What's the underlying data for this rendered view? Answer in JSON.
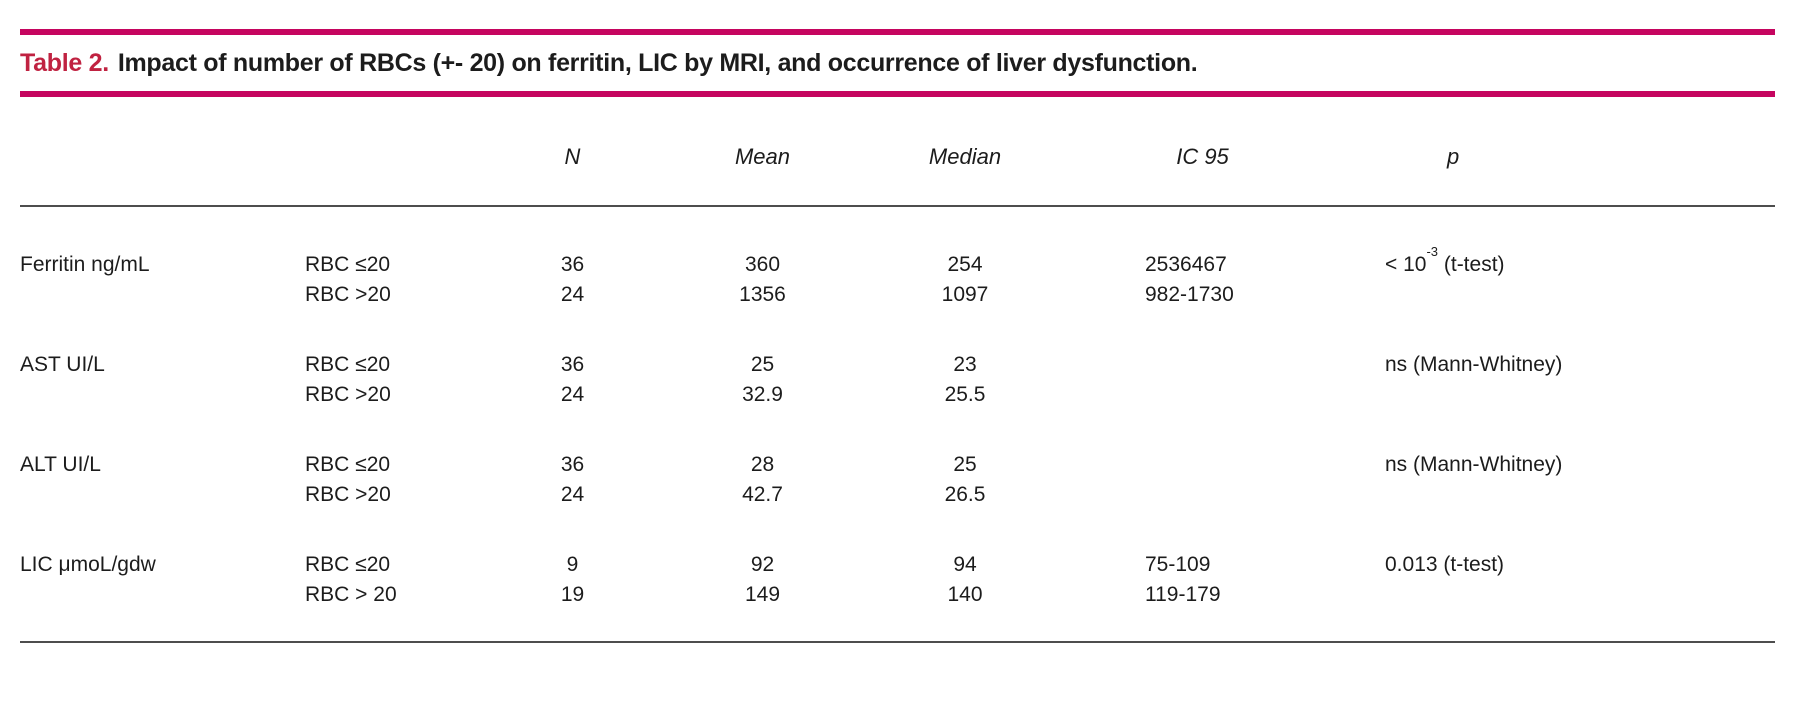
{
  "title": {
    "label": "Table 2.",
    "text": "Impact of number of RBCs (+- 20) on ferritin, LIC by MRI, and occurrence of liver dysfunction."
  },
  "colors": {
    "accent_rule": "#c5055f",
    "title_label": "#c02241",
    "text": "#1c1c1c",
    "thin_rule": "#4d4d4d"
  },
  "table": {
    "headers": {
      "n": "N",
      "mean": "Mean",
      "median": "Median",
      "ic95": "IC 95",
      "p": "p"
    },
    "groups": [
      {
        "parameter": "Ferritin ng/mL",
        "rows": [
          {
            "group": "RBC ≤20",
            "n": "36",
            "mean": "360",
            "median": "254",
            "ic95": "2536467"
          },
          {
            "group": "RBC >20",
            "n": "24",
            "mean": "1356",
            "median": "1097",
            "ic95": "982-1730"
          }
        ],
        "p": {
          "pre": "< 10",
          "sup": "-3",
          "post": " (t-test)"
        }
      },
      {
        "parameter": "AST UI/L",
        "rows": [
          {
            "group": "RBC ≤20",
            "n": "36",
            "mean": "25",
            "median": "23",
            "ic95": ""
          },
          {
            "group": "RBC >20",
            "n": "24",
            "mean": "32.9",
            "median": "25.5",
            "ic95": ""
          }
        ],
        "p": {
          "pre": "ns (Mann-Whitney)",
          "sup": "",
          "post": ""
        }
      },
      {
        "parameter": "ALT UI/L",
        "rows": [
          {
            "group": "RBC ≤20",
            "n": "36",
            "mean": "28",
            "median": "25",
            "ic95": ""
          },
          {
            "group": "RBC >20",
            "n": "24",
            "mean": "42.7",
            "median": "26.5",
            "ic95": ""
          }
        ],
        "p": {
          "pre": "ns (Mann-Whitney)",
          "sup": "",
          "post": ""
        }
      },
      {
        "parameter": "LIC μmoL/gdw",
        "rows": [
          {
            "group": "RBC ≤20",
            "n": "9",
            "mean": "92",
            "median": "94",
            "ic95": "75-109"
          },
          {
            "group": "RBC > 20",
            "n": "19",
            "mean": "149",
            "median": "140",
            "ic95": "119-179"
          }
        ],
        "p": {
          "pre": "0.013 (t-test)",
          "sup": "",
          "post": ""
        }
      }
    ]
  }
}
